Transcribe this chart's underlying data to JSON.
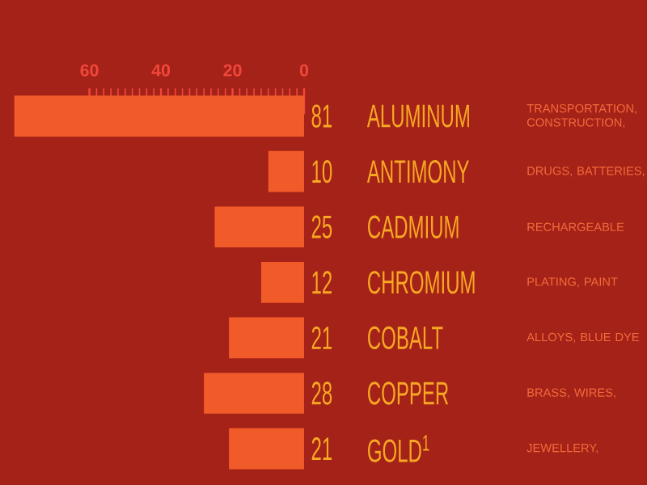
{
  "chart_data": {
    "type": "bar",
    "orientation": "horizontal",
    "categories": [
      "ALUMINUM",
      "ANTIMONY",
      "CADMIUM",
      "CHROMIUM",
      "COBALT",
      "COPPER",
      "GOLD$^{1}$"
    ],
    "values": [
      81,
      10,
      25,
      12,
      21,
      28,
      21
    ],
    "color": "#f15a29",
    "xlim": [
      85,
      0
    ],
    "xticks": [
      60,
      40,
      20,
      0
    ],
    "data_labels": true,
    "annotations": [
      "TRANSPORTATION, CONSTRUCTION,",
      "DRUGS, BATTERIES,",
      "RECHARGEABLE",
      "PLATING, PAINT",
      "ALLOYS, BLUE DYE",
      "BRASS, WIRES,",
      "JEWELLERY,"
    ]
  }
}
